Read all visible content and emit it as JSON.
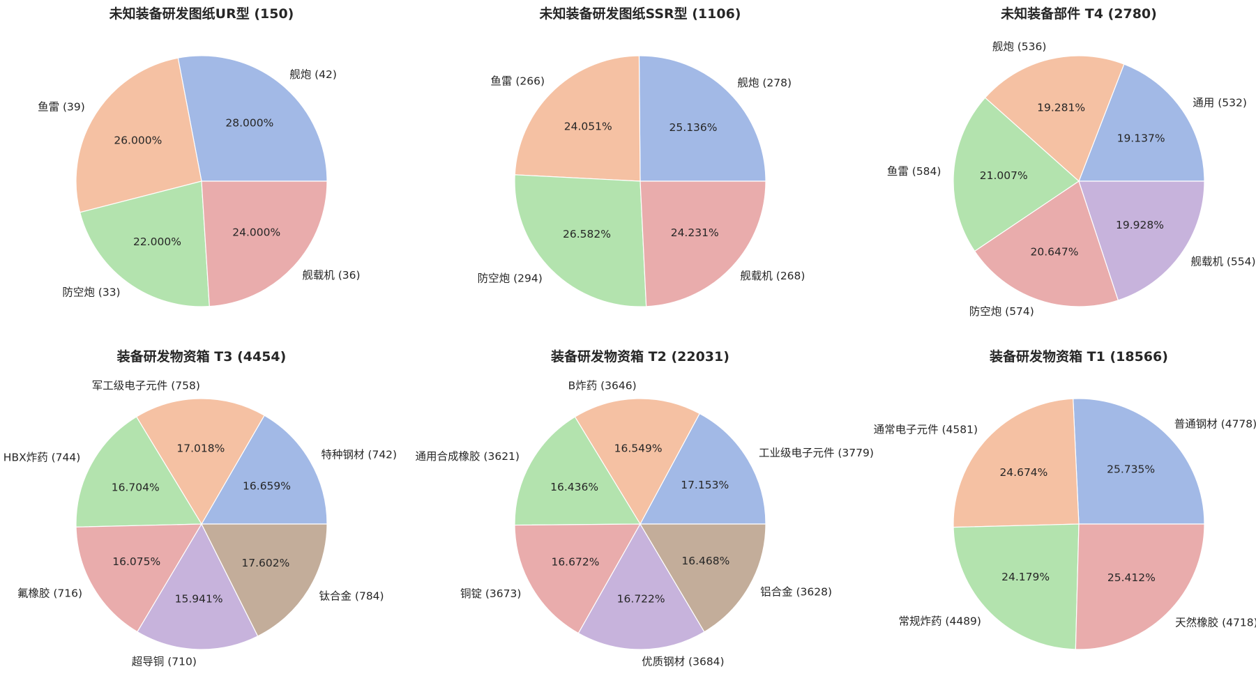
{
  "chart_data": [
    {
      "type": "pie",
      "title": "未知装备研发图纸UR型 (150)",
      "labels": [
        "舰炮 (42)",
        "鱼雷 (39)",
        "防空炮 (33)",
        "舰载机 (36)"
      ],
      "values": [
        42,
        39,
        33,
        36
      ],
      "pct_labels": [
        "28.000%",
        "26.000%",
        "22.000%",
        "24.000%"
      ],
      "colors": [
        "#a2b9e6",
        "#f5c1a3",
        "#b3e3ae",
        "#e9acac"
      ]
    },
    {
      "type": "pie",
      "title": "未知装备研发图纸SSR型 (1106)",
      "labels": [
        "舰炮 (278)",
        "鱼雷 (266)",
        "防空炮 (294)",
        "舰载机 (268)"
      ],
      "values": [
        278,
        266,
        294,
        268
      ],
      "pct_labels": [
        "25.136%",
        "24.051%",
        "26.582%",
        "24.231%"
      ],
      "colors": [
        "#a2b9e6",
        "#f5c1a3",
        "#b3e3ae",
        "#e9acac"
      ]
    },
    {
      "type": "pie",
      "title": "未知装备部件 T4 (2780)",
      "labels": [
        "通用 (532)",
        "舰炮 (536)",
        "鱼雷 (584)",
        "防空炮 (574)",
        "舰载机 (554)"
      ],
      "values": [
        532,
        536,
        584,
        574,
        554
      ],
      "pct_labels": [
        "19.137%",
        "19.281%",
        "21.007%",
        "20.647%",
        "19.928%"
      ],
      "colors": [
        "#a2b9e6",
        "#f5c1a3",
        "#b3e3ae",
        "#e9acac",
        "#c7b3dc"
      ]
    },
    {
      "type": "pie",
      "title": "装备研发物资箱 T3 (4454)",
      "labels": [
        "特种钢材 (742)",
        "军工级电子元件 (758)",
        "HBX炸药 (744)",
        "氟橡胶 (716)",
        "超导铜 (710)",
        "钛合金 (784)"
      ],
      "values": [
        742,
        758,
        744,
        716,
        710,
        784
      ],
      "pct_labels": [
        "16.659%",
        "17.018%",
        "16.704%",
        "16.075%",
        "15.941%",
        "17.602%"
      ],
      "colors": [
        "#a2b9e6",
        "#f5c1a3",
        "#b3e3ae",
        "#e9acac",
        "#c7b3dc",
        "#c3ad9a"
      ]
    },
    {
      "type": "pie",
      "title": "装备研发物资箱 T2 (22031)",
      "labels": [
        "工业级电子元件 (3779)",
        "B炸药 (3646)",
        "通用合成橡胶 (3621)",
        "铜锭 (3673)",
        "优质钢材 (3684)",
        "铝合金 (3628)"
      ],
      "values": [
        3779,
        3646,
        3621,
        3673,
        3684,
        3628
      ],
      "pct_labels": [
        "17.153%",
        "16.549%",
        "16.436%",
        "16.672%",
        "16.722%",
        "16.468%"
      ],
      "colors": [
        "#a2b9e6",
        "#f5c1a3",
        "#b3e3ae",
        "#e9acac",
        "#c7b3dc",
        "#c3ad9a"
      ]
    },
    {
      "type": "pie",
      "title": "装备研发物资箱 T1 (18566)",
      "labels": [
        "普通钢材 (4778)",
        "通常电子元件 (4581)",
        "常规炸药 (4489)",
        "天然橡胶 (4718)"
      ],
      "values": [
        4778,
        4581,
        4489,
        4718
      ],
      "pct_labels": [
        "25.735%",
        "24.674%",
        "24.179%",
        "25.412%"
      ],
      "colors": [
        "#a2b9e6",
        "#f5c1a3",
        "#b3e3ae",
        "#e9acac"
      ]
    }
  ]
}
